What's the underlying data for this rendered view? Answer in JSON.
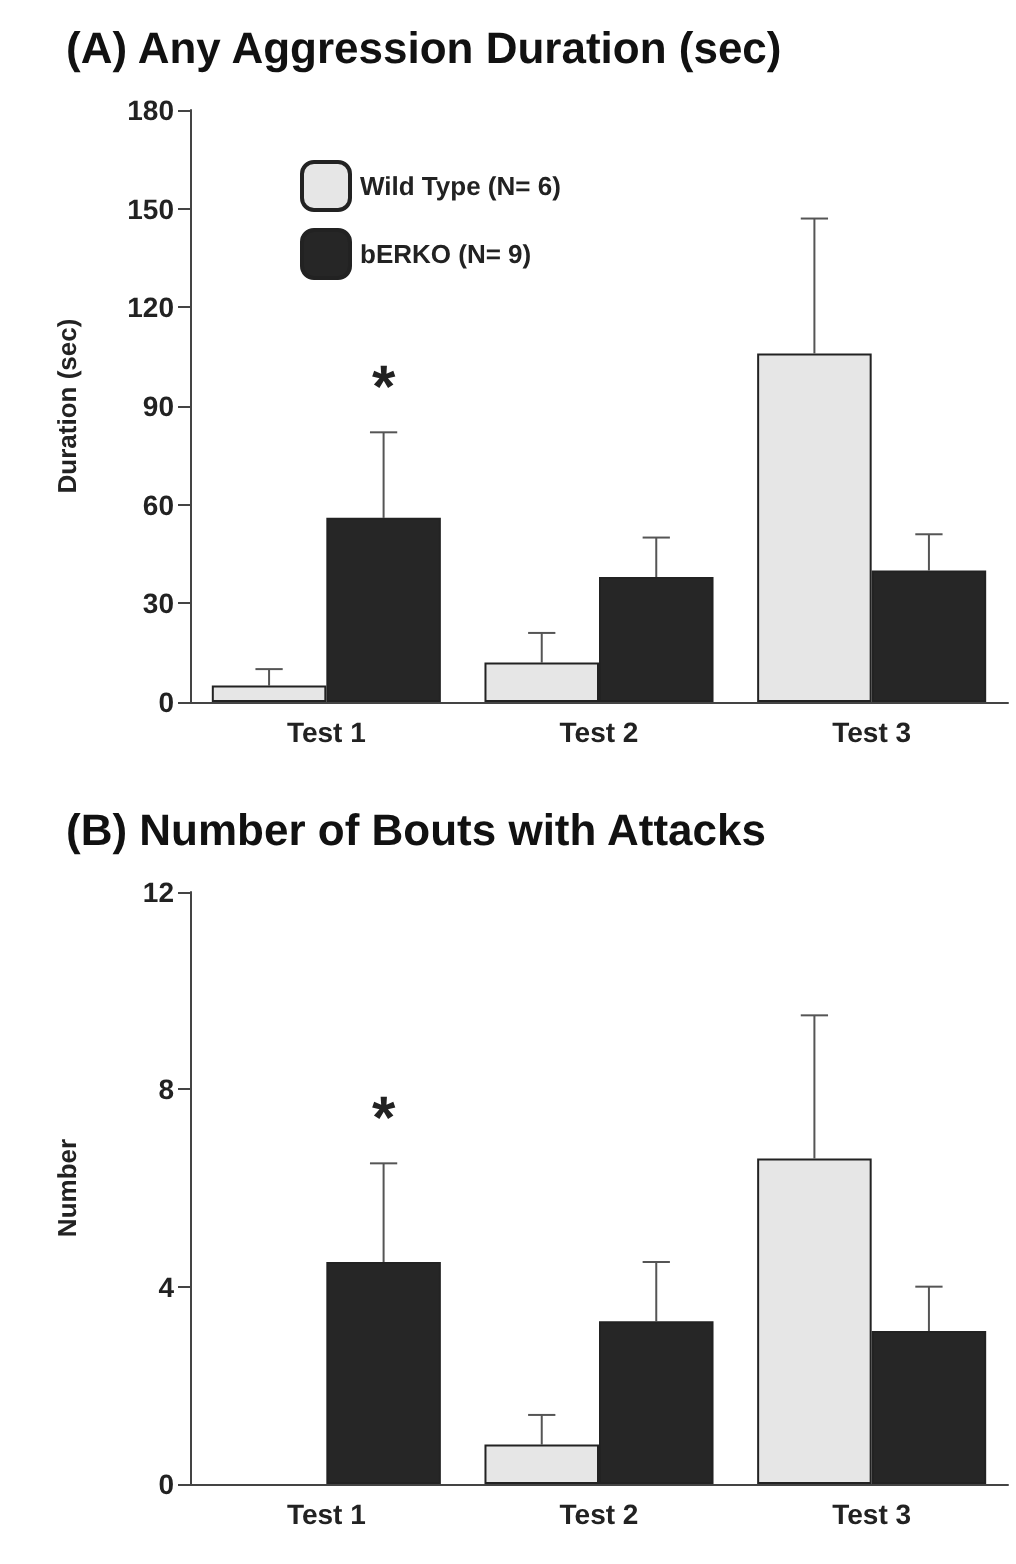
{
  "chart_data": [
    {
      "type": "bar",
      "title": "(A) Any Aggression Duration (sec)",
      "ylabel": "Duration (sec)",
      "categories": [
        "Test 1",
        "Test 2",
        "Test 3"
      ],
      "series": [
        {
          "name": "Wild Type (N= 6)",
          "color": "#e6e6e6",
          "values": [
            5,
            12,
            106
          ],
          "errors": [
            [
              5,
              10
            ],
            [
              12,
              21
            ],
            [
              106,
              147
            ]
          ]
        },
        {
          "name": "bERKO (N= 9)",
          "color": "#262626",
          "values": [
            56,
            38,
            40
          ],
          "errors": [
            [
              56,
              82
            ],
            [
              38,
              50
            ],
            [
              40,
              51
            ]
          ]
        }
      ],
      "ylim": [
        0,
        180
      ],
      "yticks": [
        0,
        30,
        60,
        90,
        120,
        150,
        180
      ],
      "grid": false,
      "legend": "top left",
      "annotations": [
        "*"
      ]
    },
    {
      "type": "bar",
      "title": "(B) Number of Bouts with Attacks",
      "ylabel": "Number",
      "categories": [
        "Test 1",
        "Test 2",
        "Test 3"
      ],
      "series": [
        {
          "color": "#e6e6e6",
          "values": [
            0,
            0.8,
            6.6
          ],
          "errors": [
            null,
            [
              0.8,
              1.4
            ],
            [
              6.6,
              9.5
            ]
          ]
        },
        {
          "color": "#262626",
          "values": [
            4.5,
            3.3,
            3.1
          ],
          "errors": [
            [
              4.5,
              6.5
            ],
            [
              3.3,
              4.5
            ],
            [
              3.1,
              4.0
            ]
          ]
        }
      ],
      "ylim": [
        0,
        12
      ],
      "yticks": [
        0,
        4,
        8,
        12
      ],
      "grid": false,
      "legend": false,
      "annotations": [
        "*"
      ]
    }
  ]
}
